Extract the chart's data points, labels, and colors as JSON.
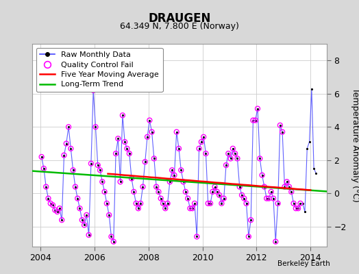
{
  "title": "DRAUGEN",
  "subtitle": "64.349 N, 7.800 E (Norway)",
  "ylabel": "Temperature Anomaly (°C)",
  "credit": "Berkeley Earth",
  "ylim": [
    -3.2,
    9.0
  ],
  "xlim": [
    2003.7,
    2014.6
  ],
  "yticks": [
    -2,
    0,
    2,
    4,
    6,
    8
  ],
  "xticks": [
    2004,
    2006,
    2008,
    2010,
    2012,
    2014
  ],
  "bg_color": "#d8d8d8",
  "plot_bg_color": "#ffffff",
  "raw_line_color": "#4444ff",
  "raw_dot_color": "#000000",
  "qc_color": "#ff00ff",
  "ma_color": "#ff0000",
  "trend_color": "#00bb00",
  "raw_monthly": [
    [
      2004.042,
      2.2
    ],
    [
      2004.125,
      1.5
    ],
    [
      2004.208,
      0.4
    ],
    [
      2004.292,
      -0.3
    ],
    [
      2004.375,
      -0.6
    ],
    [
      2004.458,
      -0.7
    ],
    [
      2004.542,
      -1.0
    ],
    [
      2004.625,
      -1.1
    ],
    [
      2004.708,
      -0.9
    ],
    [
      2004.792,
      -1.6
    ],
    [
      2004.875,
      2.3
    ],
    [
      2004.958,
      3.0
    ],
    [
      2005.042,
      4.0
    ],
    [
      2005.125,
      2.7
    ],
    [
      2005.208,
      1.4
    ],
    [
      2005.292,
      0.4
    ],
    [
      2005.375,
      -0.3
    ],
    [
      2005.458,
      -0.9
    ],
    [
      2005.542,
      -1.6
    ],
    [
      2005.625,
      -1.9
    ],
    [
      2005.708,
      -1.3
    ],
    [
      2005.792,
      -2.5
    ],
    [
      2005.875,
      1.8
    ],
    [
      2005.958,
      6.2
    ],
    [
      2006.042,
      4.0
    ],
    [
      2006.125,
      1.7
    ],
    [
      2006.208,
      1.4
    ],
    [
      2006.292,
      0.7
    ],
    [
      2006.375,
      0.1
    ],
    [
      2006.458,
      -0.6
    ],
    [
      2006.542,
      -1.3
    ],
    [
      2006.625,
      -2.6
    ],
    [
      2006.708,
      -2.9
    ],
    [
      2006.792,
      2.4
    ],
    [
      2006.875,
      3.3
    ],
    [
      2006.958,
      0.7
    ],
    [
      2007.042,
      4.7
    ],
    [
      2007.125,
      3.1
    ],
    [
      2007.208,
      2.7
    ],
    [
      2007.292,
      2.4
    ],
    [
      2007.375,
      0.9
    ],
    [
      2007.458,
      0.1
    ],
    [
      2007.542,
      -0.6
    ],
    [
      2007.625,
      -0.9
    ],
    [
      2007.708,
      -0.6
    ],
    [
      2007.792,
      0.4
    ],
    [
      2007.875,
      1.9
    ],
    [
      2007.958,
      3.4
    ],
    [
      2008.042,
      4.4
    ],
    [
      2008.125,
      3.7
    ],
    [
      2008.208,
      2.1
    ],
    [
      2008.292,
      0.4
    ],
    [
      2008.375,
      0.1
    ],
    [
      2008.458,
      -0.3
    ],
    [
      2008.542,
      -0.6
    ],
    [
      2008.625,
      -0.9
    ],
    [
      2008.708,
      -0.6
    ],
    [
      2008.792,
      0.7
    ],
    [
      2008.875,
      1.4
    ],
    [
      2008.958,
      1.1
    ],
    [
      2009.042,
      3.7
    ],
    [
      2009.125,
      2.7
    ],
    [
      2009.208,
      1.4
    ],
    [
      2009.292,
      0.7
    ],
    [
      2009.375,
      0.1
    ],
    [
      2009.458,
      -0.3
    ],
    [
      2009.542,
      -0.9
    ],
    [
      2009.625,
      -0.9
    ],
    [
      2009.708,
      -0.6
    ],
    [
      2009.792,
      -2.6
    ],
    [
      2009.875,
      2.7
    ],
    [
      2009.958,
      3.1
    ],
    [
      2010.042,
      3.4
    ],
    [
      2010.125,
      2.4
    ],
    [
      2010.208,
      -0.6
    ],
    [
      2010.292,
      -0.6
    ],
    [
      2010.375,
      0.1
    ],
    [
      2010.458,
      0.4
    ],
    [
      2010.542,
      0.1
    ],
    [
      2010.625,
      -0.1
    ],
    [
      2010.708,
      -0.6
    ],
    [
      2010.792,
      -0.3
    ],
    [
      2010.875,
      1.7
    ],
    [
      2010.958,
      2.4
    ],
    [
      2011.042,
      2.1
    ],
    [
      2011.125,
      2.7
    ],
    [
      2011.208,
      2.4
    ],
    [
      2011.292,
      2.1
    ],
    [
      2011.375,
      0.4
    ],
    [
      2011.458,
      -0.1
    ],
    [
      2011.542,
      -0.3
    ],
    [
      2011.625,
      -0.6
    ],
    [
      2011.708,
      -2.6
    ],
    [
      2011.792,
      -1.6
    ],
    [
      2011.875,
      4.4
    ],
    [
      2011.958,
      4.4
    ],
    [
      2012.042,
      5.1
    ],
    [
      2012.125,
      2.1
    ],
    [
      2012.208,
      1.1
    ],
    [
      2012.292,
      0.4
    ],
    [
      2012.375,
      -0.3
    ],
    [
      2012.458,
      -0.3
    ],
    [
      2012.542,
      0.1
    ],
    [
      2012.625,
      -0.3
    ],
    [
      2012.708,
      -2.9
    ],
    [
      2012.792,
      -0.6
    ],
    [
      2012.875,
      4.1
    ],
    [
      2012.958,
      3.7
    ],
    [
      2013.042,
      0.4
    ],
    [
      2013.125,
      0.7
    ],
    [
      2013.208,
      0.4
    ],
    [
      2013.292,
      0.1
    ],
    [
      2013.375,
      -0.6
    ],
    [
      2013.458,
      -0.9
    ],
    [
      2013.542,
      -0.9
    ],
    [
      2013.625,
      -0.6
    ],
    [
      2013.708,
      -0.6
    ],
    [
      2013.792,
      -1.1
    ],
    [
      2013.875,
      2.7
    ],
    [
      2013.958,
      3.1
    ],
    [
      2014.042,
      6.3
    ],
    [
      2014.125,
      1.5
    ],
    [
      2014.208,
      1.2
    ]
  ],
  "qc_fail_indices": [
    0,
    1,
    2,
    3,
    4,
    5,
    6,
    7,
    8,
    9,
    10,
    11,
    12,
    13,
    14,
    15,
    16,
    17,
    18,
    19,
    20,
    21,
    22,
    23,
    24,
    25,
    26,
    27,
    28,
    29,
    30,
    31,
    32,
    33,
    34,
    35,
    36,
    37,
    38,
    39,
    40,
    41,
    42,
    43,
    44,
    45,
    46,
    47,
    48,
    49,
    50,
    51,
    52,
    53,
    54,
    55,
    56,
    57,
    58,
    59,
    60,
    61,
    62,
    63,
    64,
    65,
    66,
    67,
    68,
    69,
    70,
    71,
    72,
    73,
    74,
    75,
    76,
    77,
    78,
    79,
    80,
    81,
    82,
    83,
    84,
    85,
    86,
    87,
    88,
    89,
    90,
    91,
    92,
    93,
    94,
    95,
    96,
    97,
    98,
    99,
    100,
    101,
    102,
    103,
    104,
    105,
    106,
    107,
    108,
    109,
    110,
    111,
    112,
    113,
    114,
    115
  ],
  "trend_x": [
    2003.7,
    2014.6
  ],
  "trend_y": [
    1.35,
    0.12
  ],
  "moving_avg": [
    [
      2006.5,
      1.18
    ],
    [
      2006.7,
      1.16
    ],
    [
      2006.9,
      1.13
    ],
    [
      2007.1,
      1.1
    ],
    [
      2007.3,
      1.08
    ],
    [
      2007.5,
      1.05
    ],
    [
      2007.7,
      1.02
    ],
    [
      2007.9,
      1.0
    ],
    [
      2008.1,
      0.97
    ],
    [
      2008.3,
      0.95
    ],
    [
      2008.5,
      0.92
    ],
    [
      2008.7,
      0.89
    ],
    [
      2008.9,
      0.87
    ],
    [
      2009.1,
      0.84
    ],
    [
      2009.3,
      0.81
    ],
    [
      2009.5,
      0.79
    ],
    [
      2009.7,
      0.76
    ],
    [
      2009.9,
      0.73
    ],
    [
      2010.1,
      0.71
    ],
    [
      2010.3,
      0.68
    ],
    [
      2010.5,
      0.65
    ],
    [
      2010.7,
      0.63
    ],
    [
      2010.9,
      0.6
    ],
    [
      2011.1,
      0.57
    ],
    [
      2011.3,
      0.55
    ],
    [
      2011.5,
      0.52
    ],
    [
      2011.7,
      0.5
    ],
    [
      2011.9,
      0.47
    ],
    [
      2012.1,
      0.44
    ],
    [
      2012.3,
      0.42
    ],
    [
      2012.5,
      0.39
    ],
    [
      2012.7,
      0.37
    ],
    [
      2012.9,
      0.34
    ],
    [
      2013.1,
      0.31
    ],
    [
      2013.3,
      0.29
    ],
    [
      2013.5,
      0.26
    ],
    [
      2013.7,
      0.24
    ],
    [
      2013.9,
      0.21
    ],
    [
      2014.0,
      0.2
    ]
  ],
  "grid_color": "#cccccc",
  "title_fontsize": 12,
  "subtitle_fontsize": 9,
  "tick_fontsize": 9,
  "ylabel_fontsize": 9,
  "legend_fontsize": 8
}
